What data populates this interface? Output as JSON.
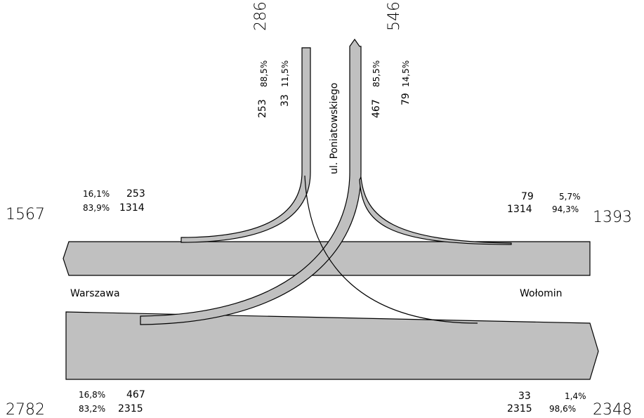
{
  "street": "ul. Poniatowskiego",
  "places": {
    "west": "Warszawa",
    "east": "Wołomin"
  },
  "north": {
    "in_total": "286",
    "in_split": [
      {
        "pct": "88,5%",
        "val": "253"
      },
      {
        "pct": "11,5%",
        "val": "33"
      }
    ],
    "out_total": "546",
    "out_split": [
      {
        "pct": "85,5%",
        "val": "467"
      },
      {
        "pct": "14,5%",
        "val": "79"
      }
    ]
  },
  "west_out": {
    "total": "1567",
    "rows": [
      {
        "pct": "16,1%",
        "val": "253"
      },
      {
        "pct": "83,9%",
        "val": "1314"
      }
    ]
  },
  "east_in": {
    "total": "1393",
    "rows": [
      {
        "val": "79",
        "pct": "5,7%"
      },
      {
        "val": "1314",
        "pct": "94,3%"
      }
    ]
  },
  "west_in": {
    "total": "2782",
    "rows": [
      {
        "pct": "16,8%",
        "val": "467"
      },
      {
        "pct": "83,2%",
        "val": "2315"
      }
    ]
  },
  "east_out": {
    "total": "2348",
    "rows": [
      {
        "val": "33",
        "pct": "1,4%"
      },
      {
        "val": "2315",
        "pct": "98,6%"
      }
    ]
  }
}
